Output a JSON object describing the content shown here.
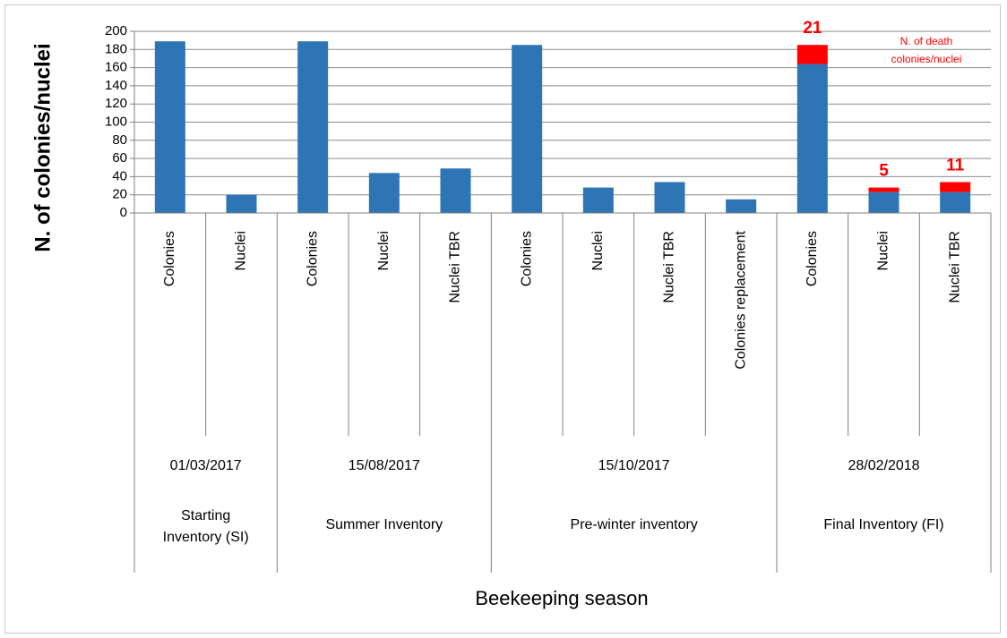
{
  "colors": {
    "base": "#2E75B6",
    "deaths": "#FF0000",
    "grid": "#8C8C8C",
    "axis": "#808080"
  },
  "chart_data": {
    "type": "bar",
    "stacked": true,
    "ylabel": "N. of colonies/nuclei",
    "xlabel": "Beekeeping season",
    "ylim": [
      0,
      200
    ],
    "yticks": [
      0,
      20,
      40,
      60,
      80,
      100,
      120,
      140,
      160,
      180,
      200
    ],
    "grid": true,
    "annotation": [
      "N. of death",
      "colonies/nuclei"
    ],
    "categories": [
      "Colonies",
      "Nuclei",
      "Colonies",
      "Nuclei",
      "Nuclei TBR",
      "Colonies",
      "Nuclei",
      "Nuclei TBR",
      "Colonies replacement",
      "Colonies",
      "Nuclei",
      "Nuclei TBR"
    ],
    "groups": [
      {
        "date": "01/03/2017",
        "name": [
          "Starting",
          "Inventory (SI)"
        ],
        "count": 2
      },
      {
        "date": "15/08/2017",
        "name": [
          "Summer Inventory"
        ],
        "count": 3
      },
      {
        "date": "15/10/2017",
        "name": [
          "Pre-winter inventory"
        ],
        "count": 4
      },
      {
        "date": "28/02/2018",
        "name": [
          "Final Inventory (FI)"
        ],
        "count": 3
      }
    ],
    "series": [
      {
        "values": [
          189,
          20,
          189,
          44,
          49,
          185,
          28,
          34,
          15,
          164,
          23,
          23
        ]
      },
      {
        "values": [
          0,
          0,
          0,
          0,
          0,
          0,
          0,
          0,
          0,
          21,
          5,
          11
        ]
      }
    ],
    "data_labels": [
      "",
      "",
      "",
      "",
      "",
      "",
      "",
      "",
      "",
      "21",
      "5",
      "11"
    ]
  }
}
